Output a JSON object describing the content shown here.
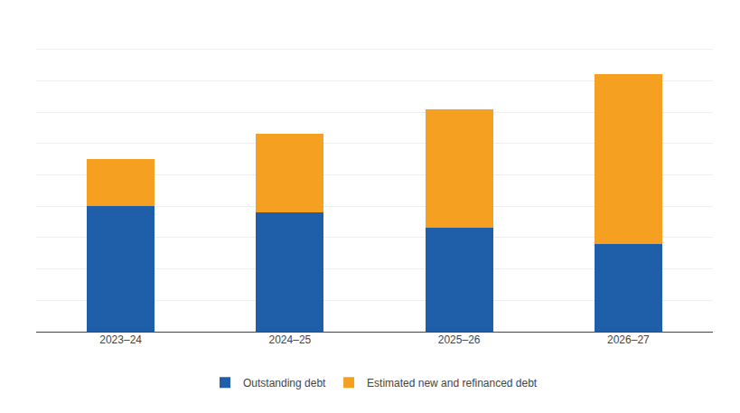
{
  "chart_data": {
    "type": "bar",
    "stacked": true,
    "categories": [
      "2023–24",
      "2024–25",
      "2025–26",
      "2026–27"
    ],
    "series": [
      {
        "name": "Outstanding debt",
        "color": "#1F5EA8",
        "values": [
          4.0,
          3.8,
          3.3,
          2.8
        ]
      },
      {
        "name": "Estimated new and refinanced debt",
        "color": "#F5A020",
        "values": [
          1.5,
          2.5,
          3.8,
          5.4
        ]
      }
    ],
    "ylim": [
      0,
      10
    ],
    "yticks": [
      0,
      1,
      2,
      3,
      4,
      5,
      6,
      7,
      8,
      9,
      10
    ],
    "grid": true,
    "legend": "bottom",
    "tick_labels": "x"
  }
}
